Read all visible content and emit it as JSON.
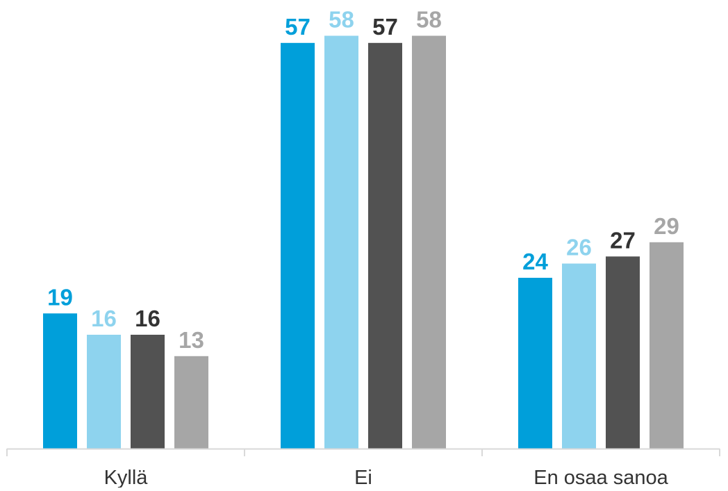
{
  "chart_data": {
    "type": "bar",
    "categories": [
      "Kyllä",
      "Ei",
      "En osaa sanoa"
    ],
    "series": [
      {
        "values": [
          19,
          57,
          24
        ],
        "color": "#009fda"
      },
      {
        "values": [
          16,
          58,
          26
        ],
        "color": "#8ed3ee"
      },
      {
        "values": [
          16,
          57,
          27
        ],
        "color": "#525252"
      },
      {
        "values": [
          13,
          58,
          29
        ],
        "color": "#a6a6a6"
      }
    ],
    "title": "",
    "xlabel": "",
    "ylabel": "",
    "ylim": [
      0,
      60
    ],
    "grid": false,
    "data_labels": true,
    "legend": "none",
    "axis_color": "#d9d9d9",
    "category_label_color": "#333333",
    "data_label_colors": [
      "#009fda",
      "#8ed3ee",
      "#333333",
      "#a6a6a6"
    ]
  }
}
